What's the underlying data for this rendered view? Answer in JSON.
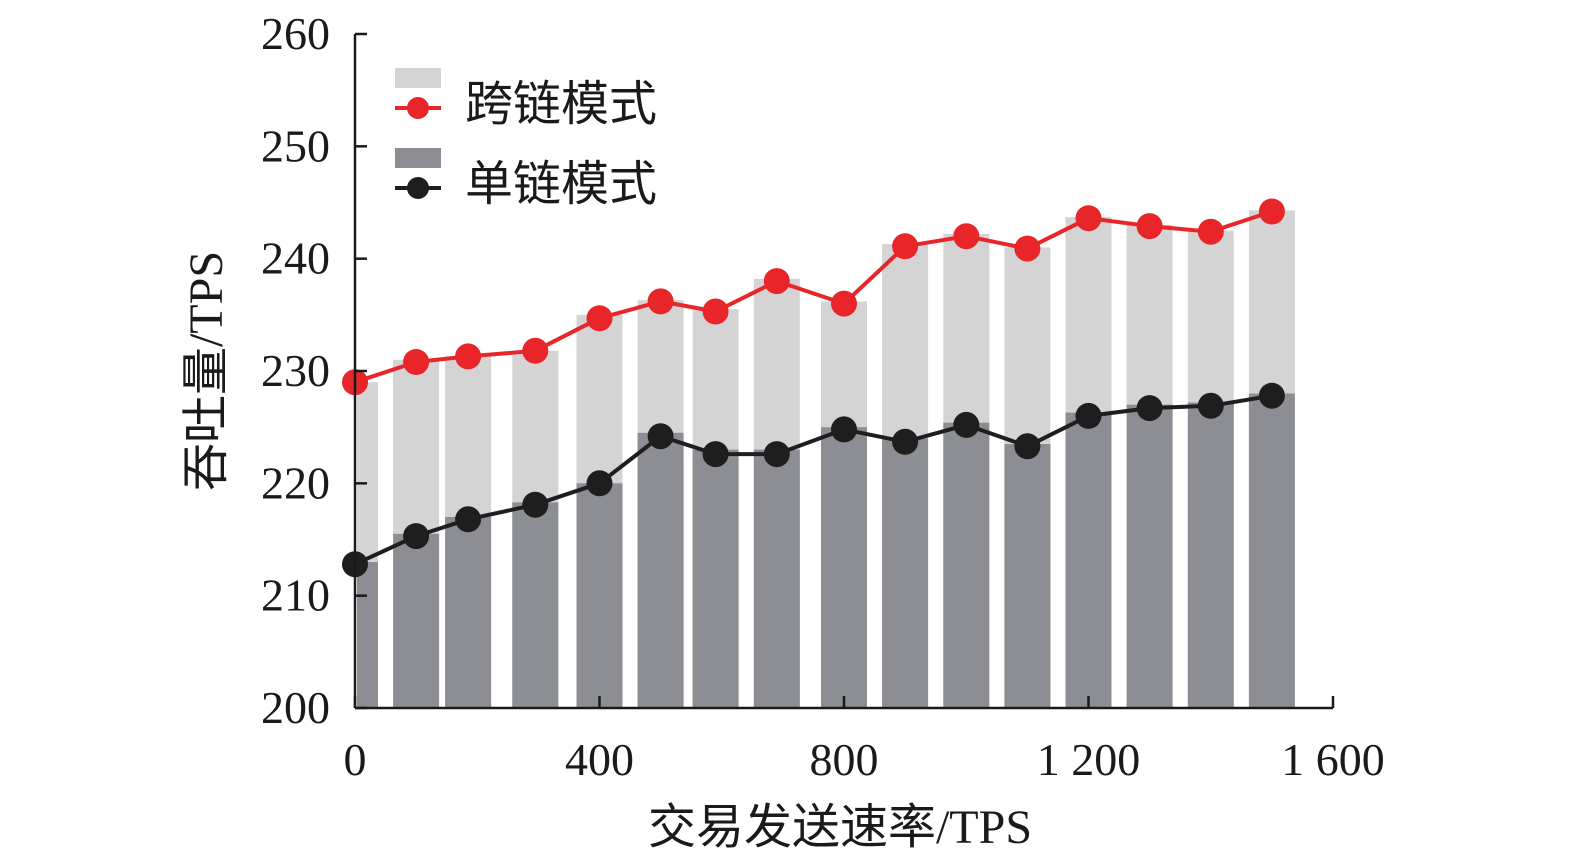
{
  "chart_data": {
    "type": "bar",
    "xlabel": "交易发送速率/TPS",
    "ylabel": "吞吐量/TPS",
    "xlim": [
      0,
      1600
    ],
    "ylim": [
      200,
      260
    ],
    "x_ticks": [
      0,
      400,
      800,
      1200,
      1600
    ],
    "x_tick_labels": [
      "0",
      "400",
      "800",
      "1 200",
      "1 600"
    ],
    "y_ticks": [
      200,
      210,
      220,
      230,
      240,
      250,
      260
    ],
    "y_tick_labels": [
      "200",
      "210",
      "220",
      "230",
      "240",
      "250",
      "260"
    ],
    "grid": false,
    "legend_position": "top-left",
    "x": [
      0,
      100,
      185,
      295,
      400,
      500,
      590,
      690,
      800,
      900,
      1000,
      1100,
      1200,
      1300,
      1400,
      1500
    ],
    "series": [
      {
        "name": "跨链模式",
        "kind": "bar",
        "color": "#d4d4d4",
        "values": [
          229.0,
          231.0,
          231.3,
          231.8,
          235.0,
          236.3,
          235.5,
          238.2,
          236.2,
          241.3,
          242.2,
          241.0,
          243.7,
          243.0,
          242.5,
          244.3
        ]
      },
      {
        "name": "跨链模式",
        "kind": "line",
        "color": "#e8262a",
        "values": [
          229.0,
          230.8,
          231.3,
          231.8,
          234.7,
          236.2,
          235.3,
          238.0,
          236.0,
          241.1,
          242.0,
          240.9,
          243.6,
          242.9,
          242.4,
          244.2
        ]
      },
      {
        "name": "单链模式",
        "kind": "bar",
        "color": "#8c8e93",
        "values": [
          213.0,
          215.5,
          217.0,
          218.3,
          220.0,
          224.5,
          223.0,
          223.0,
          225.0,
          224.0,
          225.4,
          223.5,
          226.3,
          227.0,
          227.2,
          228.0
        ]
      },
      {
        "name": "单链模式",
        "kind": "line",
        "color": "#1e1e1e",
        "values": [
          212.8,
          215.3,
          216.8,
          218.1,
          220.0,
          224.2,
          222.6,
          222.6,
          224.8,
          223.7,
          225.2,
          223.3,
          226.0,
          226.7,
          226.9,
          227.8
        ]
      }
    ]
  }
}
